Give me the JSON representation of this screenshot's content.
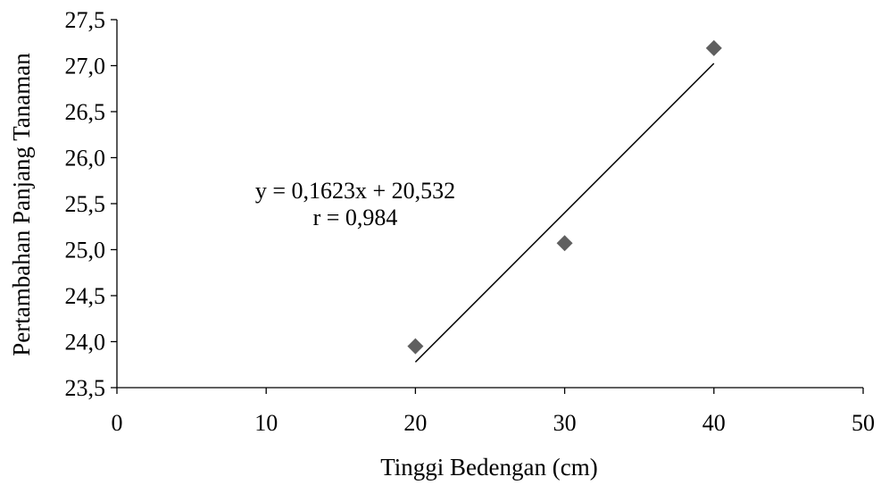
{
  "chart_data": {
    "type": "scatter",
    "title": "",
    "xlabel": "Tinggi Bedengan (cm)",
    "ylabel": "Pertambahan Panjang Tanaman",
    "xlim": [
      0,
      50
    ],
    "ylim": [
      23.5,
      27.5
    ],
    "x_ticks": [
      0,
      10,
      20,
      30,
      40,
      50
    ],
    "x_tick_labels": [
      "0",
      "10",
      "20",
      "30",
      "40",
      "50"
    ],
    "y_ticks": [
      23.5,
      24.0,
      24.5,
      25.0,
      25.5,
      26.0,
      26.5,
      27.0,
      27.5
    ],
    "y_tick_labels": [
      "23,5",
      "24,0",
      "24,5",
      "25,0",
      "25,5",
      "26,0",
      "26,5",
      "27,0",
      "27,5"
    ],
    "grid": false,
    "series": [
      {
        "marker": "diamond",
        "color": "#5f5f5f",
        "points": [
          {
            "x": 20,
            "y": 23.95
          },
          {
            "x": 30,
            "y": 25.07
          },
          {
            "x": 40,
            "y": 27.19
          }
        ]
      }
    ],
    "trendline": {
      "slope": 0.1623,
      "intercept": 20.532,
      "x_range": [
        20,
        40
      ],
      "color": "#000000"
    },
    "annotations": [
      {
        "text": "y = 0,1623x + 20,532"
      },
      {
        "text": "r = 0,984"
      }
    ]
  }
}
